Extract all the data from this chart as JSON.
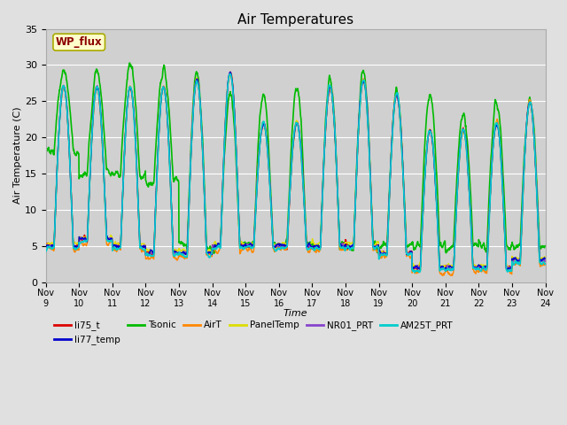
{
  "title": "Air Temperatures",
  "xlabel": "Time",
  "ylabel": "Air Temperature (C)",
  "ylim": [
    0,
    35
  ],
  "yticks": [
    0,
    5,
    10,
    15,
    20,
    25,
    30,
    35
  ],
  "fig_bg": "#e0e0e0",
  "plot_bg": "#d0d0d0",
  "annotation_text": "WP_flux",
  "annotation_color": "#8B0000",
  "annotation_bg": "#ffffcc",
  "annotation_border": "#aaaa00",
  "series": {
    "li75_t": {
      "color": "#dd0000",
      "lw": 1.0,
      "label": "li75_t",
      "zorder": 3
    },
    "li77_temp": {
      "color": "#0000cc",
      "lw": 1.0,
      "label": "li77_temp",
      "zorder": 4
    },
    "Tsonic": {
      "color": "#00bb00",
      "lw": 1.2,
      "label": "Tsonic",
      "zorder": 2
    },
    "AirT": {
      "color": "#ff8800",
      "lw": 1.0,
      "label": "AirT",
      "zorder": 3
    },
    "PanelTemp": {
      "color": "#dddd00",
      "lw": 1.0,
      "label": "PanelTemp",
      "zorder": 3
    },
    "NR01_PRT": {
      "color": "#8844cc",
      "lw": 1.0,
      "label": "NR01_PRT",
      "zorder": 3
    },
    "AM25T_PRT": {
      "color": "#00cccc",
      "lw": 1.2,
      "label": "AM25T_PRT",
      "zorder": 5
    }
  },
  "legend_order": [
    "li75_t",
    "li77_temp",
    "Tsonic",
    "AirT",
    "PanelTemp",
    "NR01_PRT",
    "AM25T_PRT"
  ],
  "n_days": 15,
  "n_per_day": 144,
  "day_peaks_main": [
    27,
    27,
    27,
    27,
    28,
    29,
    22,
    22,
    27,
    28,
    26,
    21,
    21,
    22,
    25
  ],
  "day_peaks_sonic_day": [
    29,
    29,
    30,
    29,
    29,
    26,
    26,
    27,
    28,
    29,
    26,
    26,
    23,
    25,
    25
  ],
  "night_bases_main": [
    5,
    6,
    5,
    4,
    4,
    5,
    5,
    5,
    5,
    5,
    4,
    2,
    2,
    2,
    3
  ],
  "night_bases_sonic_early": [
    18,
    15,
    15,
    14,
    5,
    5,
    5,
    5,
    5,
    5,
    5,
    5,
    5,
    5,
    5
  ]
}
